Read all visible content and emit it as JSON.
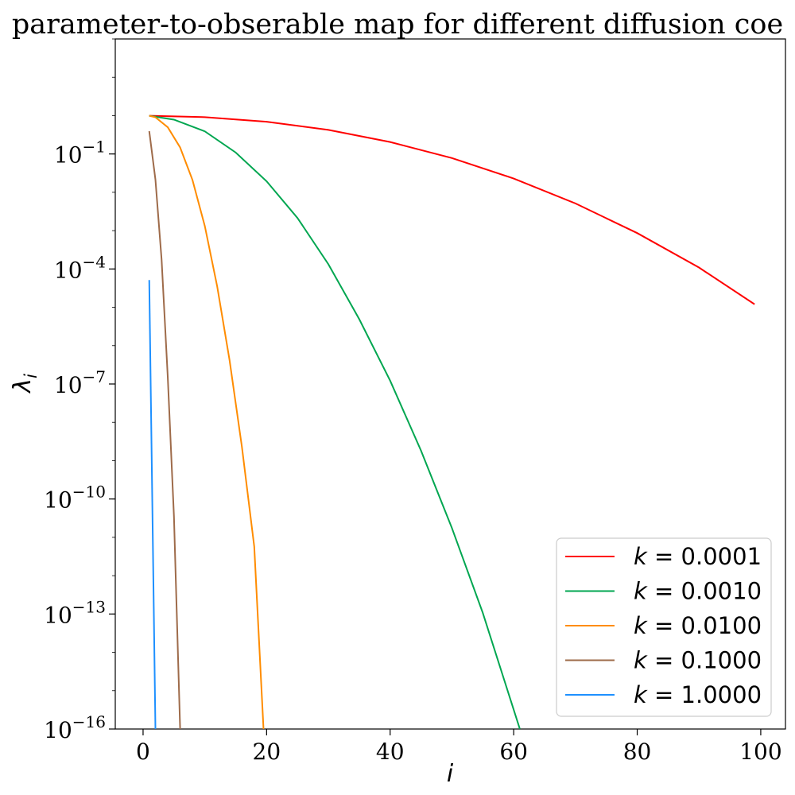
{
  "chart_data": {
    "type": "line",
    "title": "parameter-to-obserable map for different diffusion coe",
    "xlabel": "i",
    "ylabel": "λ",
    "ylabel_subscript": "i",
    "xscale": "linear",
    "yscale": "log",
    "xlim": [
      -4.5,
      104
    ],
    "ylim_exp": [
      -16,
      2
    ],
    "xticks": [
      0,
      20,
      40,
      60,
      80,
      100
    ],
    "xtick_labels": [
      "0",
      "20",
      "40",
      "60",
      "80",
      "100"
    ],
    "ytick_exps": [
      -16,
      -13,
      -10,
      -7,
      -4,
      -1
    ],
    "ytick_base": "10",
    "ytick_labels": [
      "−16",
      "−13",
      "−10",
      "−7",
      "−4",
      "−1"
    ],
    "grid": false,
    "legend_position": "lower-right",
    "series": [
      {
        "name": "k = 0.0001",
        "legend_var": "k",
        "legend_val": "0.0001",
        "color": "#ff0000",
        "points": [
          [
            1,
            0.993
          ],
          [
            10,
            0.912
          ],
          [
            20,
            0.693
          ],
          [
            30,
            0.425
          ],
          [
            40,
            0.205
          ],
          [
            50,
            0.0781
          ],
          [
            60,
            0.0229
          ],
          [
            70,
            0.00513
          ],
          [
            80,
            0.000863
          ],
          [
            90,
            0.000109
          ],
          [
            99,
            1.2e-05
          ]
        ]
      },
      {
        "name": "k = 0.0010",
        "legend_var": "k",
        "legend_val": "0.0010",
        "color": "#00a650",
        "points": [
          [
            1,
            0.993
          ],
          [
            5,
            0.786
          ],
          [
            10,
            0.389
          ],
          [
            15,
            0.109
          ],
          [
            20,
            0.0194
          ],
          [
            25,
            0.00214
          ],
          [
            30,
            0.000133
          ],
          [
            35,
            4.9e-06
          ],
          [
            40,
            1.22e-07
          ],
          [
            45,
            1.82e-09
          ],
          [
            50,
            1.75e-11
          ],
          [
            55,
            1.07e-13
          ],
          [
            61,
            1e-16
          ]
        ]
      },
      {
        "name": "k = 0.0100",
        "legend_var": "k",
        "legend_val": "0.0100",
        "color": "#ff8c00",
        "points": [
          [
            1,
            0.993
          ],
          [
            2,
            0.905
          ],
          [
            4,
            0.497
          ],
          [
            6,
            0.148
          ],
          [
            8,
            0.0209
          ],
          [
            10,
            0.00131
          ],
          [
            12,
            3.5e-05
          ],
          [
            14,
            4.2e-07
          ],
          [
            16,
            2.3e-09
          ],
          [
            18,
            5.7e-12
          ],
          [
            19.5,
            1e-16
          ]
        ]
      },
      {
        "name": "k = 0.1000",
        "legend_var": "k",
        "legend_val": "0.1000",
        "color": "#9e6b4a",
        "points": [
          [
            1,
            0.392
          ],
          [
            2,
            0.0215
          ],
          [
            3,
            0.000175
          ],
          [
            4,
            1.5e-07
          ],
          [
            5,
            3.5e-11
          ],
          [
            6,
            1e-16
          ]
        ]
      },
      {
        "name": "k = 1.0000",
        "legend_var": "k",
        "legend_val": "1.0000",
        "color": "#1e90ff",
        "points": [
          [
            1,
            5.15e-05
          ],
          [
            2,
            1e-16
          ]
        ]
      }
    ]
  }
}
